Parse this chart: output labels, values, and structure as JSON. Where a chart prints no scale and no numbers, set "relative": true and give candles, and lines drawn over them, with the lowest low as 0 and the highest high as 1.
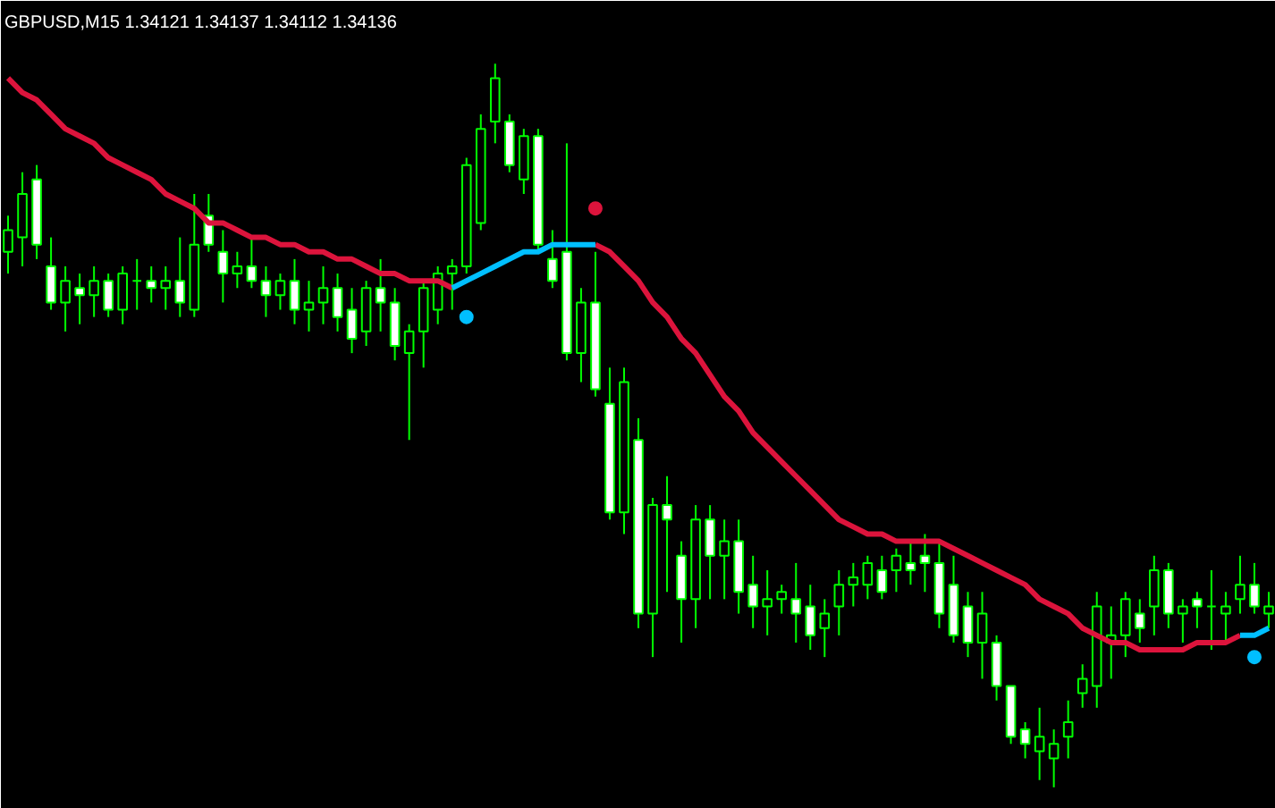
{
  "chart_data": {
    "type": "candlestick",
    "title": "GBPUSD,M15  1.34121 1.34137 1.34112 1.34136",
    "relative": true,
    "color": "#00ff00",
    "categories": [
      null,
      null,
      null,
      null,
      null,
      null,
      null,
      null,
      null,
      null,
      null,
      null,
      null,
      null,
      null,
      null,
      null,
      null,
      null,
      null,
      null,
      null,
      null,
      null,
      null,
      null,
      null,
      null,
      null,
      null,
      null,
      null,
      null,
      null,
      null,
      null,
      null,
      null,
      null,
      null,
      null,
      null,
      null,
      null,
      null,
      null,
      null,
      null,
      null,
      null,
      null,
      null,
      null,
      null,
      null,
      null,
      null,
      null,
      null,
      null,
      null,
      null,
      null,
      null,
      null,
      null,
      null,
      null,
      null,
      null,
      null,
      null,
      null,
      null,
      null,
      null,
      null,
      null,
      null,
      null,
      null,
      null,
      null,
      null,
      null,
      null,
      null,
      null,
      null
    ],
    "ohlc": [
      [
        0.74,
        0.79,
        0.71,
        0.77
      ],
      [
        0.76,
        0.85,
        0.72,
        0.82
      ],
      [
        0.84,
        0.86,
        0.73,
        0.75
      ],
      [
        0.72,
        0.76,
        0.66,
        0.67
      ],
      [
        0.67,
        0.72,
        0.63,
        0.7
      ],
      [
        0.69,
        0.71,
        0.64,
        0.68
      ],
      [
        0.68,
        0.72,
        0.65,
        0.7
      ],
      [
        0.7,
        0.71,
        0.65,
        0.66
      ],
      [
        0.66,
        0.72,
        0.64,
        0.71
      ],
      [
        0.7,
        0.73,
        0.66,
        0.7
      ],
      [
        0.7,
        0.72,
        0.67,
        0.69
      ],
      [
        0.69,
        0.72,
        0.66,
        0.7
      ],
      [
        0.7,
        0.76,
        0.65,
        0.67
      ],
      [
        0.66,
        0.82,
        0.65,
        0.75
      ],
      [
        0.79,
        0.82,
        0.74,
        0.75
      ],
      [
        0.74,
        0.77,
        0.67,
        0.71
      ],
      [
        0.71,
        0.74,
        0.69,
        0.72
      ],
      [
        0.72,
        0.76,
        0.69,
        0.7
      ],
      [
        0.7,
        0.72,
        0.65,
        0.68
      ],
      [
        0.68,
        0.71,
        0.66,
        0.7
      ],
      [
        0.7,
        0.73,
        0.64,
        0.66
      ],
      [
        0.66,
        0.7,
        0.63,
        0.67
      ],
      [
        0.67,
        0.72,
        0.64,
        0.69
      ],
      [
        0.69,
        0.71,
        0.63,
        0.65
      ],
      [
        0.66,
        0.69,
        0.6,
        0.62
      ],
      [
        0.63,
        0.7,
        0.61,
        0.69
      ],
      [
        0.69,
        0.73,
        0.63,
        0.67
      ],
      [
        0.67,
        0.69,
        0.59,
        0.61
      ],
      [
        0.6,
        0.64,
        0.48,
        0.63
      ],
      [
        0.63,
        0.7,
        0.58,
        0.69
      ],
      [
        0.66,
        0.72,
        0.64,
        0.71
      ],
      [
        0.71,
        0.73,
        0.66,
        0.72
      ],
      [
        0.72,
        0.87,
        0.71,
        0.86
      ],
      [
        0.78,
        0.93,
        0.77,
        0.91
      ],
      [
        0.92,
        1.0,
        0.89,
        0.98
      ],
      [
        0.92,
        0.93,
        0.85,
        0.86
      ],
      [
        0.84,
        0.91,
        0.82,
        0.9
      ],
      [
        0.9,
        0.91,
        0.74,
        0.75
      ],
      [
        0.73,
        0.77,
        0.69,
        0.7
      ],
      [
        0.74,
        0.89,
        0.59,
        0.6
      ],
      [
        0.6,
        0.69,
        0.56,
        0.67
      ],
      [
        0.67,
        0.74,
        0.54,
        0.55
      ],
      [
        0.53,
        0.58,
        0.37,
        0.38
      ],
      [
        0.38,
        0.58,
        0.35,
        0.56
      ],
      [
        0.48,
        0.51,
        0.22,
        0.24
      ],
      [
        0.24,
        0.4,
        0.18,
        0.39
      ],
      [
        0.39,
        0.43,
        0.27,
        0.37
      ],
      [
        0.32,
        0.34,
        0.2,
        0.26
      ],
      [
        0.26,
        0.39,
        0.22,
        0.37
      ],
      [
        0.37,
        0.39,
        0.26,
        0.32
      ],
      [
        0.32,
        0.37,
        0.26,
        0.34
      ],
      [
        0.34,
        0.37,
        0.24,
        0.27
      ],
      [
        0.28,
        0.32,
        0.22,
        0.25
      ],
      [
        0.25,
        0.3,
        0.21,
        0.26
      ],
      [
        0.26,
        0.28,
        0.24,
        0.27
      ],
      [
        0.26,
        0.31,
        0.2,
        0.24
      ],
      [
        0.25,
        0.28,
        0.19,
        0.21
      ],
      [
        0.22,
        0.26,
        0.18,
        0.24
      ],
      [
        0.25,
        0.3,
        0.21,
        0.28
      ],
      [
        0.28,
        0.31,
        0.25,
        0.29
      ],
      [
        0.28,
        0.32,
        0.26,
        0.31
      ],
      [
        0.3,
        0.32,
        0.26,
        0.27
      ],
      [
        0.3,
        0.33,
        0.27,
        0.32
      ],
      [
        0.31,
        0.34,
        0.28,
        0.3
      ],
      [
        0.32,
        0.35,
        0.27,
        0.31
      ],
      [
        0.31,
        0.34,
        0.22,
        0.24
      ],
      [
        0.28,
        0.32,
        0.2,
        0.21
      ],
      [
        0.25,
        0.27,
        0.18,
        0.2
      ],
      [
        0.2,
        0.27,
        0.15,
        0.24
      ],
      [
        0.2,
        0.21,
        0.12,
        0.14
      ],
      [
        0.14,
        0.14,
        0.06,
        0.07
      ],
      [
        0.08,
        0.09,
        0.04,
        0.06
      ],
      [
        0.05,
        0.11,
        0.01,
        0.07
      ],
      [
        0.04,
        0.08,
        0.0,
        0.06
      ],
      [
        0.07,
        0.12,
        0.04,
        0.09
      ],
      [
        0.13,
        0.17,
        0.11,
        0.15
      ],
      [
        0.14,
        0.27,
        0.11,
        0.25
      ],
      [
        0.2,
        0.25,
        0.15,
        0.21
      ],
      [
        0.21,
        0.27,
        0.18,
        0.26
      ],
      [
        0.24,
        0.26,
        0.2,
        0.22
      ],
      [
        0.25,
        0.32,
        0.21,
        0.3
      ],
      [
        0.3,
        0.31,
        0.22,
        0.24
      ],
      [
        0.24,
        0.26,
        0.2,
        0.25
      ],
      [
        0.26,
        0.27,
        0.22,
        0.25
      ],
      [
        0.25,
        0.3,
        0.19,
        0.25
      ],
      [
        0.24,
        0.27,
        0.2,
        0.25
      ],
      [
        0.26,
        0.32,
        0.24,
        0.28
      ],
      [
        0.28,
        0.31,
        0.24,
        0.25
      ],
      [
        0.24,
        0.27,
        0.22,
        0.25
      ]
    ],
    "series": [
      {
        "type": "line",
        "color": "#dc143c",
        "values": [
          0.98,
          0.96,
          0.95,
          0.93,
          0.91,
          0.9,
          0.89,
          0.87,
          0.86,
          0.85,
          0.84,
          0.82,
          0.81,
          0.8,
          0.78,
          0.78,
          0.77,
          0.76,
          0.76,
          0.75,
          0.75,
          0.74,
          0.74,
          0.73,
          0.73,
          0.72,
          0.71,
          0.71,
          0.7,
          0.7,
          0.7,
          0.69,
          null,
          null,
          null,
          null,
          null,
          null,
          null,
          null,
          null,
          0.75,
          0.74,
          0.72,
          0.7,
          0.67,
          0.65,
          0.62,
          0.6,
          0.57,
          0.54,
          0.52,
          0.49,
          0.47,
          0.45,
          0.43,
          0.41,
          0.39,
          0.37,
          0.36,
          0.35,
          0.35,
          0.34,
          0.34,
          0.34,
          0.34,
          0.33,
          0.32,
          0.31,
          0.3,
          0.29,
          0.28,
          0.26,
          0.25,
          0.24,
          0.22,
          0.21,
          0.2,
          0.2,
          0.19,
          0.19,
          0.19,
          0.19,
          0.2,
          0.2,
          0.2,
          0.21,
          null,
          null
        ]
      },
      {
        "type": "line",
        "color": "#00bfff",
        "values": [
          null,
          null,
          null,
          null,
          null,
          null,
          null,
          null,
          null,
          null,
          null,
          null,
          null,
          null,
          null,
          null,
          null,
          null,
          null,
          null,
          null,
          null,
          null,
          null,
          null,
          null,
          null,
          null,
          null,
          null,
          null,
          0.69,
          0.7,
          0.71,
          0.72,
          0.73,
          0.74,
          0.74,
          0.75,
          0.75,
          0.75,
          0.75,
          null,
          null,
          null,
          null,
          null,
          null,
          null,
          null,
          null,
          null,
          null,
          null,
          null,
          null,
          null,
          null,
          null,
          null,
          null,
          null,
          null,
          null,
          null,
          null,
          null,
          null,
          null,
          null,
          null,
          null,
          null,
          null,
          null,
          null,
          null,
          null,
          null,
          null,
          null,
          null,
          null,
          null,
          null,
          null,
          0.21,
          0.21,
          0.22
        ]
      },
      {
        "type": "scatter",
        "color": "#dc143c",
        "marker": "circle",
        "values": [
          null,
          null,
          null,
          null,
          null,
          null,
          null,
          null,
          null,
          null,
          null,
          null,
          null,
          null,
          null,
          null,
          null,
          null,
          null,
          null,
          null,
          null,
          null,
          null,
          null,
          null,
          null,
          null,
          null,
          null,
          null,
          null,
          null,
          null,
          null,
          null,
          null,
          null,
          null,
          null,
          null,
          0.8,
          null,
          null,
          null,
          null,
          null,
          null,
          null,
          null,
          null,
          null,
          null,
          null,
          null,
          null,
          null,
          null,
          null,
          null,
          null,
          null,
          null,
          null,
          null,
          null,
          null,
          null,
          null,
          null,
          null,
          null,
          null,
          null,
          null,
          null,
          null,
          null,
          null,
          null,
          null,
          null,
          null,
          null,
          null,
          null,
          null,
          null,
          null
        ]
      },
      {
        "type": "scatter",
        "color": "#00bfff",
        "marker": "circle",
        "values": [
          null,
          null,
          null,
          null,
          null,
          null,
          null,
          null,
          null,
          null,
          null,
          null,
          null,
          null,
          null,
          null,
          null,
          null,
          null,
          null,
          null,
          null,
          null,
          null,
          null,
          null,
          null,
          null,
          null,
          null,
          null,
          null,
          0.65,
          null,
          null,
          null,
          null,
          null,
          null,
          null,
          null,
          null,
          null,
          null,
          null,
          null,
          null,
          null,
          null,
          null,
          null,
          null,
          null,
          null,
          null,
          null,
          null,
          null,
          null,
          null,
          null,
          null,
          null,
          null,
          null,
          null,
          null,
          null,
          null,
          null,
          null,
          null,
          null,
          null,
          null,
          null,
          null,
          null,
          null,
          null,
          null,
          null,
          null,
          null,
          null,
          null,
          null,
          0.18,
          null
        ]
      }
    ]
  }
}
